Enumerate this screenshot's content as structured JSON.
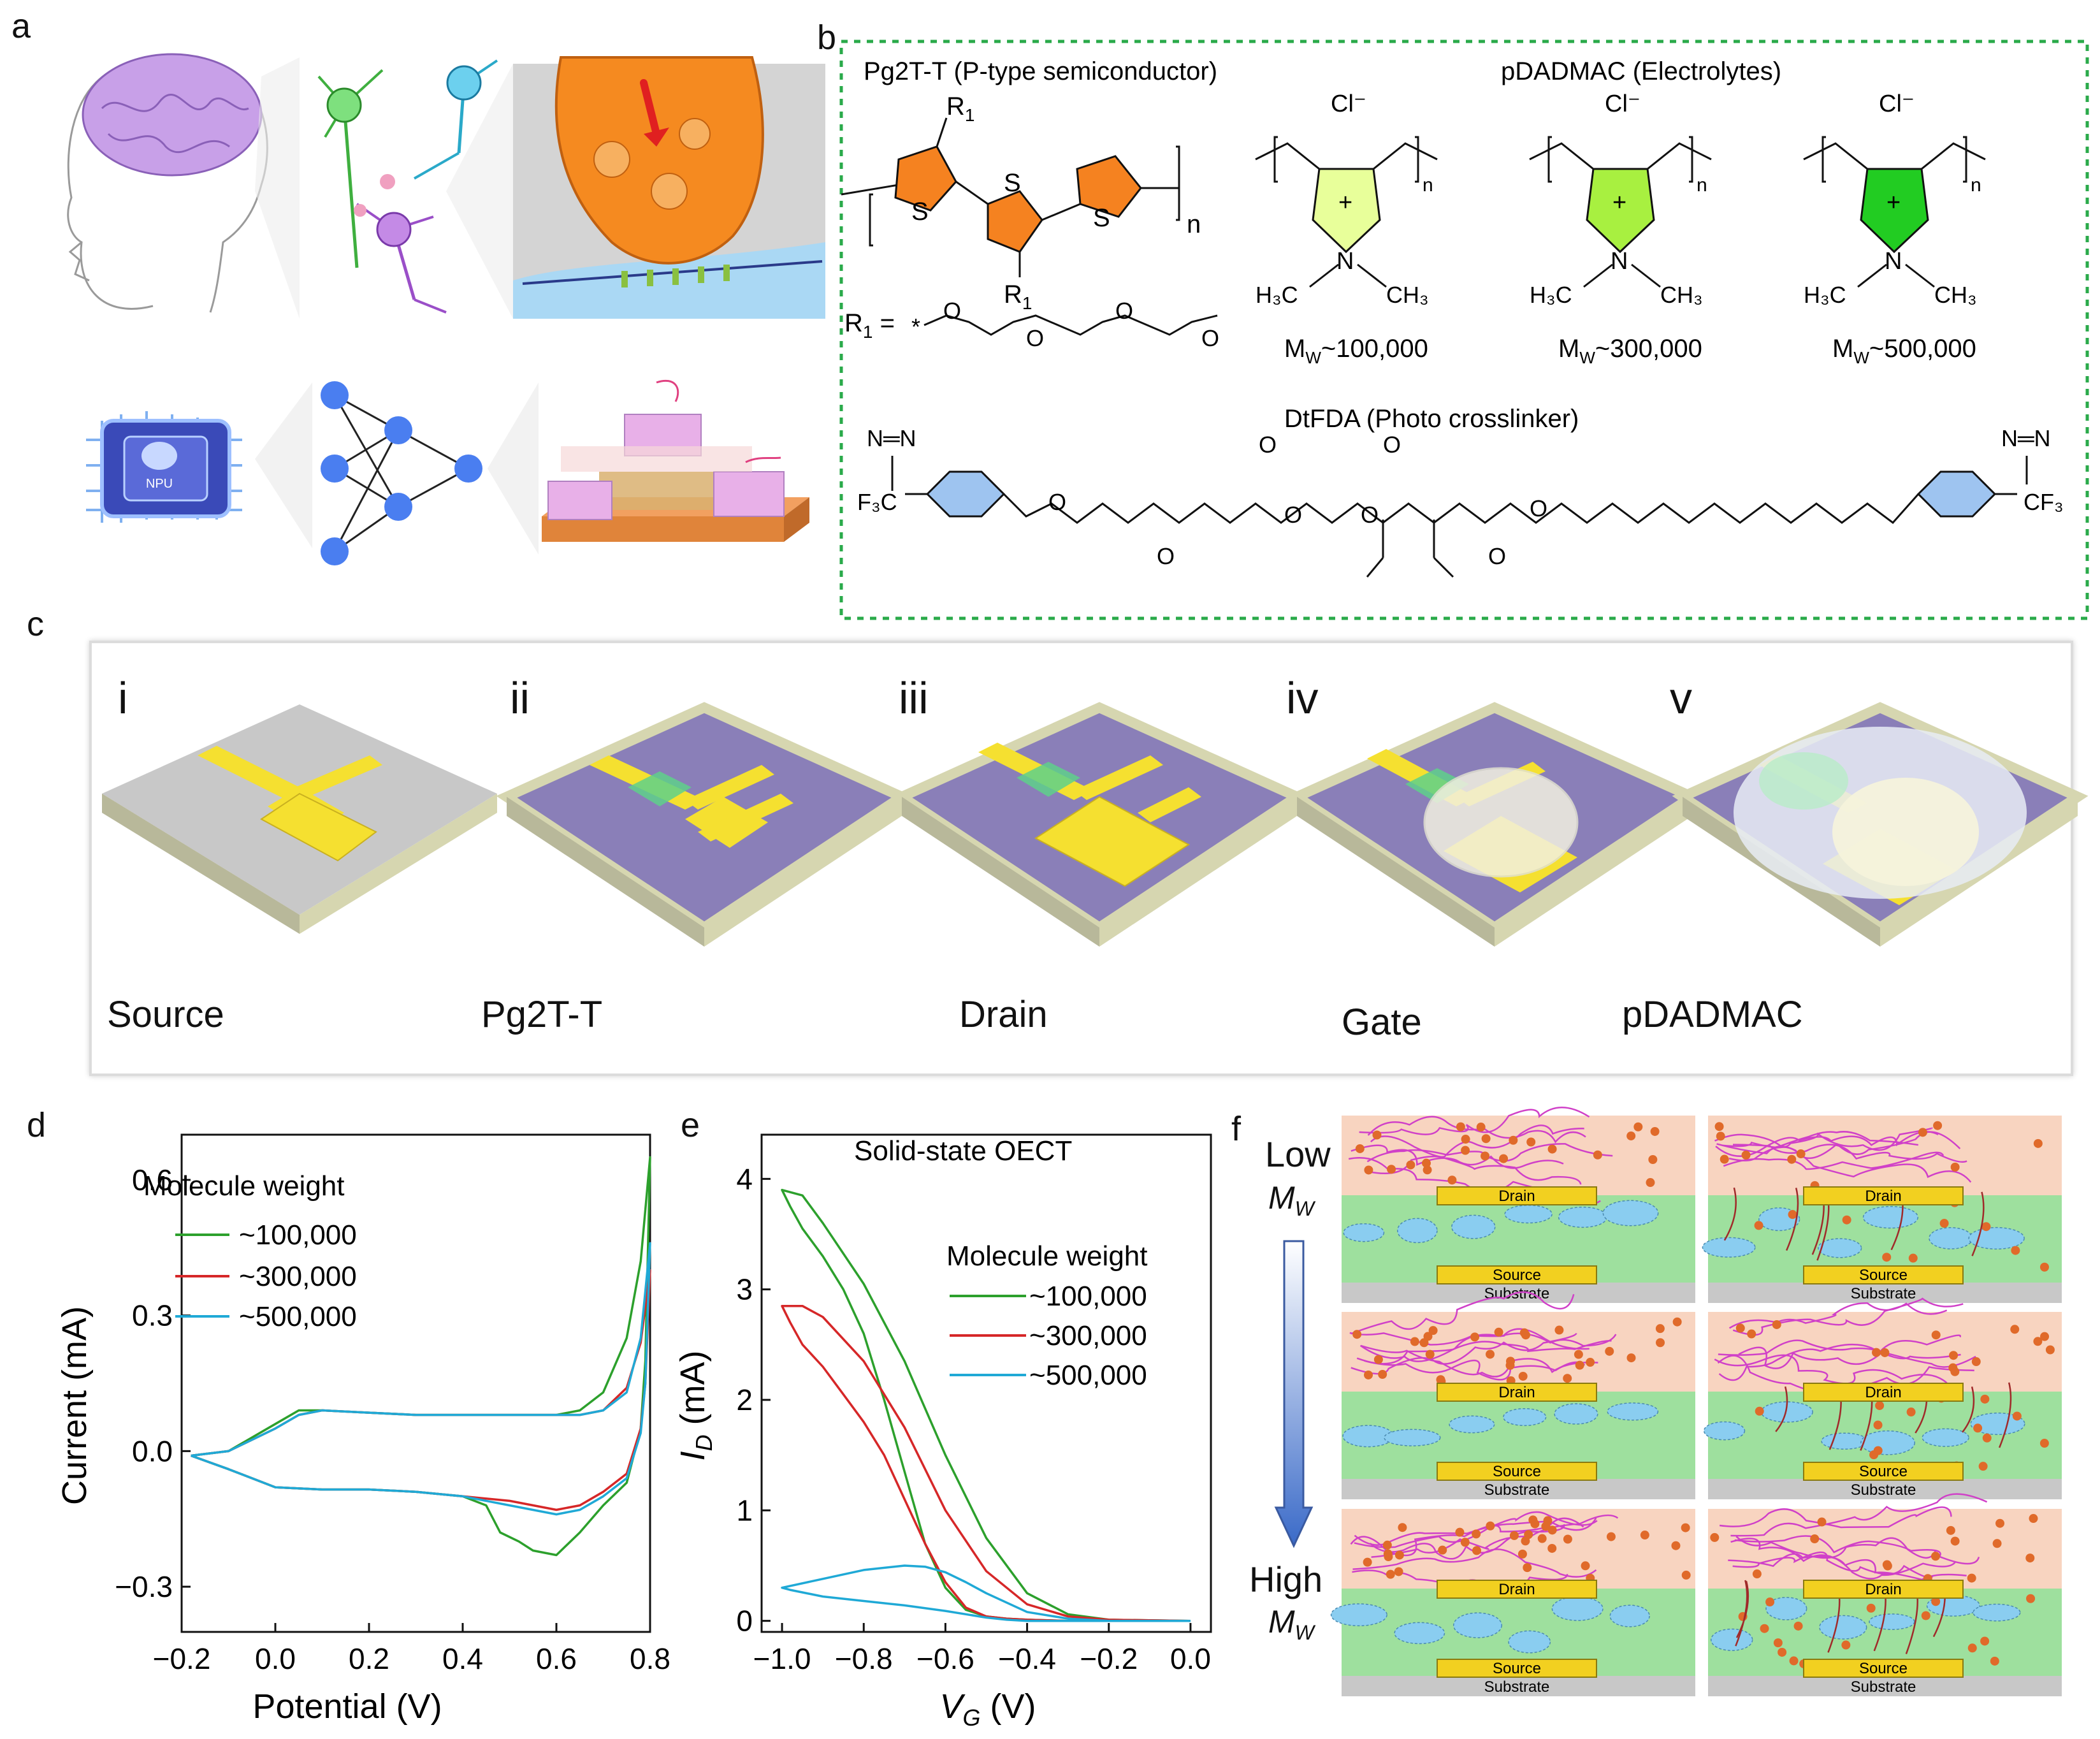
{
  "panel_labels": {
    "a": "a",
    "b": "b",
    "c": "c",
    "d": "d",
    "e": "e",
    "f": "f"
  },
  "panel_a": {
    "chip_label": "NPU"
  },
  "panel_b": {
    "pg2tt_title": "Pg2T-T (P-type semiconductor)",
    "pdadmac_title": "pDADMAC (Electrolytes)",
    "dtfda_title": "DtFDA (Photo crosslinker)",
    "r1_def": "R",
    "r1_sub": "1",
    "r1_eq": " = ",
    "atom_s": "S",
    "subscript_n": "n",
    "counter_ion": "Cl⁻",
    "charge": "+",
    "nitrogen": "N",
    "oxygen": "O",
    "methyl_left": "H₃C",
    "methyl_right": "CH₃",
    "cf3_left": "F₃C",
    "cf3_right": "CF₃",
    "diazirine": "N═N",
    "mw_labels": [
      "M",
      "M",
      "M"
    ],
    "mw_sub": "W",
    "mw_values": [
      "~100,000",
      "~300,000",
      "~500,000"
    ],
    "colors": {
      "thiophene": "#f58220",
      "ring_1": "#e8ff9a",
      "ring_2": "#a8f040",
      "ring_3": "#22cc22",
      "benzene": "#9ec4f0"
    }
  },
  "panel_c": {
    "steps": [
      {
        "numeral": "i",
        "label": "Source"
      },
      {
        "numeral": "ii",
        "label": "Pg2T-T"
      },
      {
        "numeral": "iii",
        "label": "Drain"
      },
      {
        "numeral": "iv",
        "label": "Gate"
      },
      {
        "numeral": "v",
        "label": "pDADMAC"
      }
    ],
    "colors": {
      "substrate_gray": "#c8c8c8",
      "substrate_purple": "#8a7fb8",
      "electrode": "#f5e030",
      "semiconductor": "#5ed08a"
    }
  },
  "panel_d": {
    "legend_title": "Molecule weight",
    "series_labels": [
      "~100,000",
      "~300,000",
      "~500,000"
    ]
  },
  "panel_e": {
    "chart_title": "Solid-state OECT",
    "legend_title": "Molecule weight",
    "series_labels": [
      "~100,000",
      "~300,000",
      "~500,000"
    ]
  },
  "panel_f": {
    "low_label": "Low",
    "high_label": "High",
    "mw_symbol": "M",
    "mw_sub": "W",
    "drain_label": "Drain",
    "source_label": "Source",
    "substrate_label": "Substrate"
  },
  "chart_data": [
    {
      "type": "line",
      "xlabel": "Potential (V)",
      "ylabel": "Current (mA)",
      "xlim": [
        -0.2,
        0.8
      ],
      "ylim": [
        -0.4,
        0.7
      ],
      "xticks": [
        -0.2,
        0.0,
        0.2,
        0.4,
        0.6,
        0.8
      ],
      "xtick_labels": [
        "−0.2",
        "0.0",
        "0.2",
        "0.4",
        "0.6",
        "0.8"
      ],
      "yticks": [
        -0.3,
        0.0,
        0.3,
        0.6
      ],
      "ytick_labels": [
        "−0.3",
        "0.0",
        "0.3",
        "0.6"
      ],
      "legend_title": "Molecule weight",
      "series": [
        {
          "name": "~100,000",
          "color": "#2ca02c",
          "x": [
            -0.18,
            -0.1,
            0.0,
            0.05,
            0.1,
            0.2,
            0.3,
            0.4,
            0.5,
            0.6,
            0.65,
            0.7,
            0.75,
            0.78,
            0.8,
            0.79,
            0.78,
            0.75,
            0.7,
            0.65,
            0.6,
            0.55,
            0.52,
            0.48,
            0.45,
            0.4,
            0.3,
            0.2,
            0.1,
            0.0,
            -0.1,
            -0.18
          ],
          "y": [
            -0.01,
            0.0,
            0.06,
            0.09,
            0.09,
            0.085,
            0.08,
            0.08,
            0.08,
            0.08,
            0.09,
            0.13,
            0.25,
            0.42,
            0.65,
            0.2,
            0.05,
            -0.07,
            -0.12,
            -0.18,
            -0.23,
            -0.22,
            -0.2,
            -0.18,
            -0.12,
            -0.1,
            -0.09,
            -0.085,
            -0.085,
            -0.08,
            -0.04,
            -0.01
          ]
        },
        {
          "name": "~300,000",
          "color": "#d62728",
          "x": [
            -0.18,
            -0.1,
            0.0,
            0.05,
            0.1,
            0.2,
            0.3,
            0.4,
            0.5,
            0.6,
            0.65,
            0.7,
            0.75,
            0.78,
            0.8,
            0.79,
            0.78,
            0.75,
            0.7,
            0.65,
            0.6,
            0.5,
            0.4,
            0.3,
            0.2,
            0.1,
            0.0,
            -0.1,
            -0.18
          ],
          "y": [
            -0.01,
            0.0,
            0.05,
            0.08,
            0.09,
            0.085,
            0.08,
            0.08,
            0.08,
            0.08,
            0.08,
            0.09,
            0.14,
            0.24,
            0.4,
            0.15,
            0.05,
            -0.05,
            -0.09,
            -0.12,
            -0.13,
            -0.11,
            -0.1,
            -0.09,
            -0.085,
            -0.085,
            -0.08,
            -0.04,
            -0.01
          ]
        },
        {
          "name": "~500,000",
          "color": "#1fa9d6",
          "x": [
            -0.18,
            -0.1,
            0.0,
            0.05,
            0.1,
            0.2,
            0.3,
            0.4,
            0.5,
            0.6,
            0.65,
            0.7,
            0.75,
            0.78,
            0.8,
            0.79,
            0.78,
            0.75,
            0.7,
            0.65,
            0.6,
            0.5,
            0.4,
            0.3,
            0.2,
            0.1,
            0.0,
            -0.1,
            -0.18
          ],
          "y": [
            -0.01,
            0.0,
            0.05,
            0.08,
            0.09,
            0.085,
            0.08,
            0.08,
            0.08,
            0.08,
            0.08,
            0.09,
            0.13,
            0.25,
            0.46,
            0.15,
            0.04,
            -0.06,
            -0.1,
            -0.13,
            -0.14,
            -0.12,
            -0.1,
            -0.09,
            -0.085,
            -0.085,
            -0.08,
            -0.04,
            -0.01
          ]
        }
      ]
    },
    {
      "type": "line",
      "title": "Solid-state OECT",
      "xlabel_main": "V",
      "xlabel_sub": "G",
      "xlabel_unit": " (V)",
      "ylabel_main": "I",
      "ylabel_sub": "D",
      "ylabel_unit": " (mA)",
      "xlim": [
        -1.05,
        0.05
      ],
      "ylim": [
        -0.1,
        4.4
      ],
      "xticks": [
        -1.0,
        -0.8,
        -0.6,
        -0.4,
        -0.2,
        0.0
      ],
      "xtick_labels": [
        "−1.0",
        "−0.8",
        "−0.6",
        "−0.4",
        "−0.2",
        "0.0"
      ],
      "yticks": [
        0,
        1,
        2,
        3,
        4
      ],
      "ytick_labels": [
        "0",
        "1",
        "2",
        "3",
        "4"
      ],
      "legend_title": "Molecule weight",
      "series": [
        {
          "name": "~100,000",
          "color": "#2ca02c",
          "x": [
            0.0,
            -0.2,
            -0.3,
            -0.4,
            -0.5,
            -0.6,
            -0.7,
            -0.8,
            -0.9,
            -0.95,
            -1.0,
            -0.98,
            -0.95,
            -0.9,
            -0.85,
            -0.8,
            -0.75,
            -0.7,
            -0.65,
            -0.6,
            -0.55,
            -0.5,
            -0.45,
            -0.4,
            -0.3,
            -0.2,
            0.0
          ],
          "y": [
            0.0,
            0.01,
            0.06,
            0.25,
            0.75,
            1.5,
            2.35,
            3.05,
            3.6,
            3.85,
            3.9,
            3.75,
            3.55,
            3.3,
            3.0,
            2.6,
            2.0,
            1.35,
            0.7,
            0.3,
            0.1,
            0.04,
            0.02,
            0.01,
            0.0,
            0.0,
            0.0
          ]
        },
        {
          "name": "~300,000",
          "color": "#d62728",
          "x": [
            0.0,
            -0.2,
            -0.3,
            -0.4,
            -0.5,
            -0.6,
            -0.7,
            -0.8,
            -0.9,
            -0.95,
            -1.0,
            -0.98,
            -0.95,
            -0.9,
            -0.85,
            -0.8,
            -0.75,
            -0.7,
            -0.65,
            -0.6,
            -0.55,
            -0.5,
            -0.45,
            -0.4,
            -0.3,
            -0.2,
            0.0
          ],
          "y": [
            0.0,
            0.01,
            0.04,
            0.15,
            0.45,
            1.0,
            1.75,
            2.35,
            2.75,
            2.85,
            2.85,
            2.7,
            2.5,
            2.3,
            2.05,
            1.8,
            1.5,
            1.1,
            0.7,
            0.35,
            0.12,
            0.04,
            0.02,
            0.01,
            0.0,
            0.0,
            0.0
          ]
        },
        {
          "name": "~500,000",
          "color": "#1fa9d6",
          "x": [
            0.0,
            -0.2,
            -0.3,
            -0.4,
            -0.5,
            -0.55,
            -0.6,
            -0.65,
            -0.7,
            -0.8,
            -0.9,
            -1.0,
            -0.98,
            -0.9,
            -0.8,
            -0.7,
            -0.6,
            -0.55,
            -0.5,
            -0.45,
            -0.4,
            -0.3,
            -0.2,
            0.0
          ],
          "y": [
            0.0,
            0.0,
            0.02,
            0.08,
            0.25,
            0.35,
            0.44,
            0.49,
            0.5,
            0.46,
            0.38,
            0.3,
            0.28,
            0.22,
            0.18,
            0.14,
            0.09,
            0.06,
            0.03,
            0.01,
            0.0,
            0.0,
            0.0,
            0.0
          ]
        }
      ]
    }
  ]
}
